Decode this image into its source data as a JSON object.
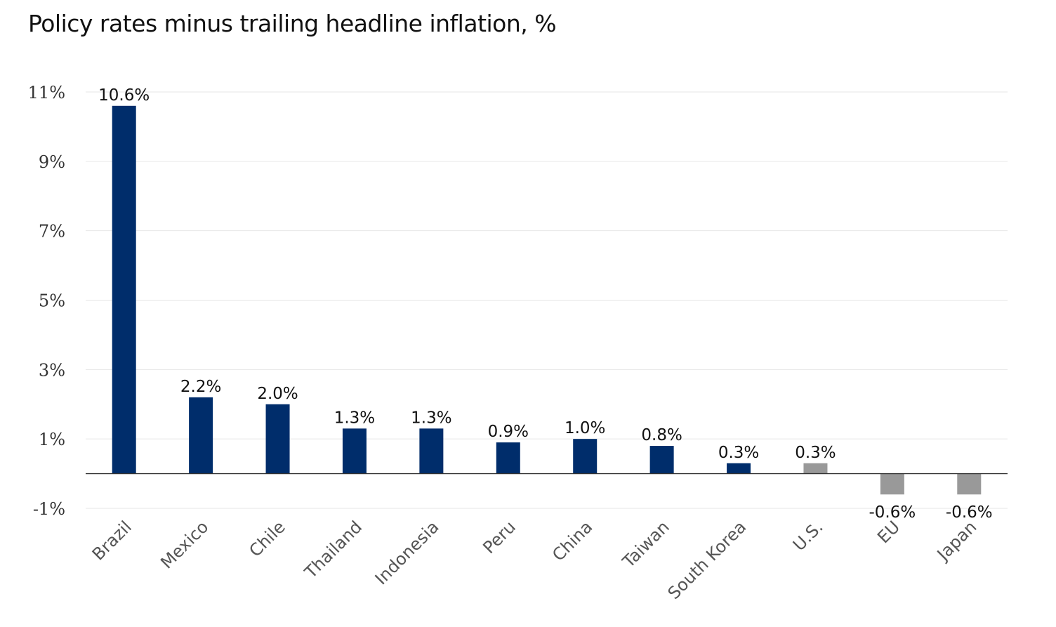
{
  "chart_data": {
    "type": "bar",
    "title": "Policy rates minus trailing headline inflation, %",
    "xlabel": "",
    "ylabel": "",
    "ylim": [
      -1,
      11
    ],
    "yticks": [
      -1,
      1,
      3,
      5,
      7,
      9,
      11
    ],
    "ytick_labels": [
      "-1%",
      "1%",
      "3%",
      "5%",
      "7%",
      "9%",
      "11%"
    ],
    "grid": true,
    "categories": [
      "Brazil",
      "Mexico",
      "Chile",
      "Thailand",
      "Indonesia",
      "Peru",
      "China",
      "Taiwan",
      "South Korea",
      "U.S.",
      "EU",
      "Japan"
    ],
    "values": [
      10.6,
      2.2,
      2.0,
      1.3,
      1.3,
      0.9,
      1.0,
      0.8,
      0.3,
      0.3,
      -0.6,
      -0.6
    ],
    "data_labels": [
      "10.6%",
      "2.2%",
      "2.0%",
      "1.3%",
      "1.3%",
      "0.9%",
      "1.0%",
      "0.8%",
      "0.3%",
      "0.3%",
      "-0.6%",
      "-0.6%"
    ],
    "groups": [
      "em",
      "em",
      "em",
      "em",
      "em",
      "em",
      "em",
      "em",
      "em",
      "dm",
      "dm",
      "dm"
    ],
    "colors": {
      "em": "#002d6b",
      "dm": "#999999",
      "grid": "#e6e6e6",
      "axis": "#333333"
    }
  }
}
